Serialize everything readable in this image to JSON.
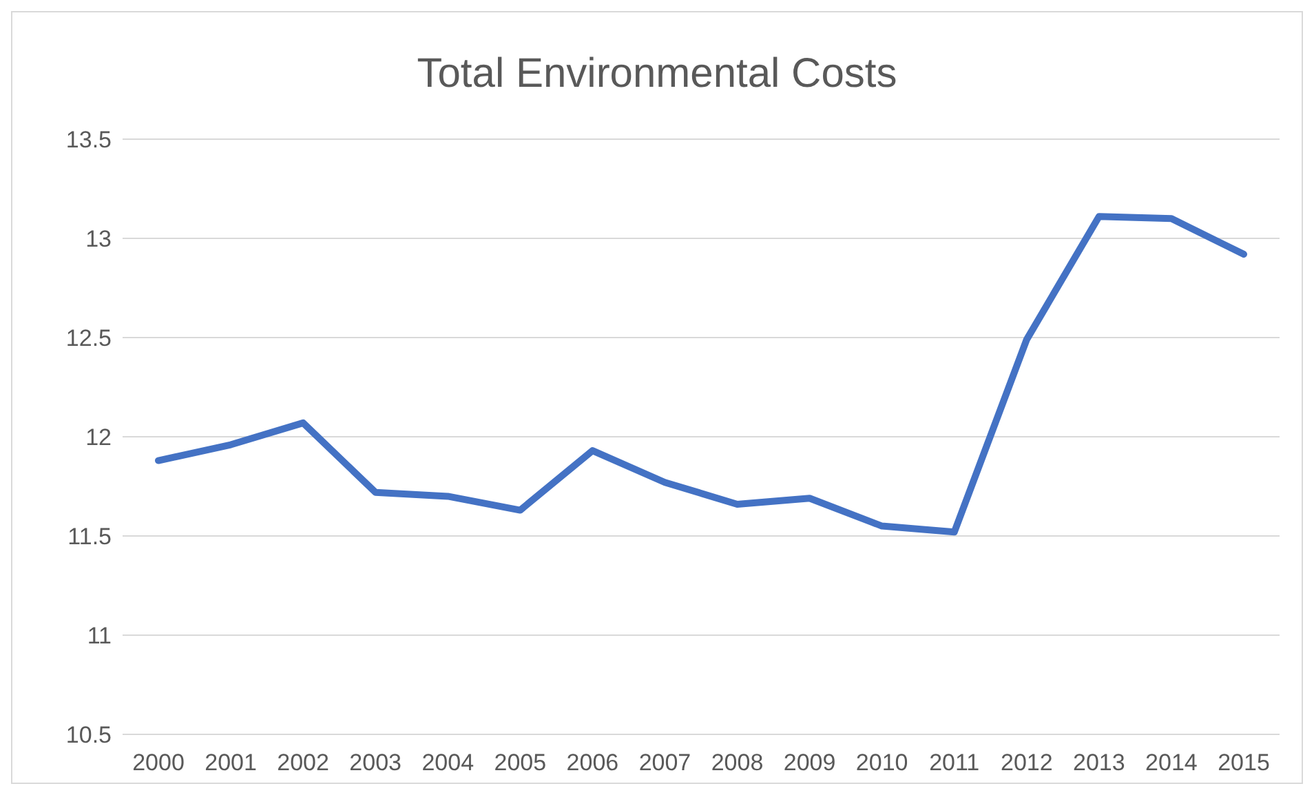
{
  "chart_data": {
    "type": "line",
    "title": "Total Environmental Costs",
    "categories": [
      "2000",
      "2001",
      "2002",
      "2003",
      "2004",
      "2005",
      "2006",
      "2007",
      "2008",
      "2009",
      "2010",
      "2011",
      "2012",
      "2013",
      "2014",
      "2015"
    ],
    "series": [
      {
        "color": "#4472c4",
        "values": [
          11.88,
          11.96,
          12.07,
          11.72,
          11.7,
          11.63,
          11.93,
          11.77,
          11.66,
          11.69,
          11.55,
          11.52,
          12.49,
          13.11,
          13.1,
          12.92
        ]
      }
    ],
    "ylim": [
      10.5,
      13.5
    ],
    "yticks": [
      10.5,
      11,
      11.5,
      12,
      12.5,
      13,
      13.5
    ],
    "grid": "y",
    "marker": "none",
    "line_style": "solid"
  }
}
